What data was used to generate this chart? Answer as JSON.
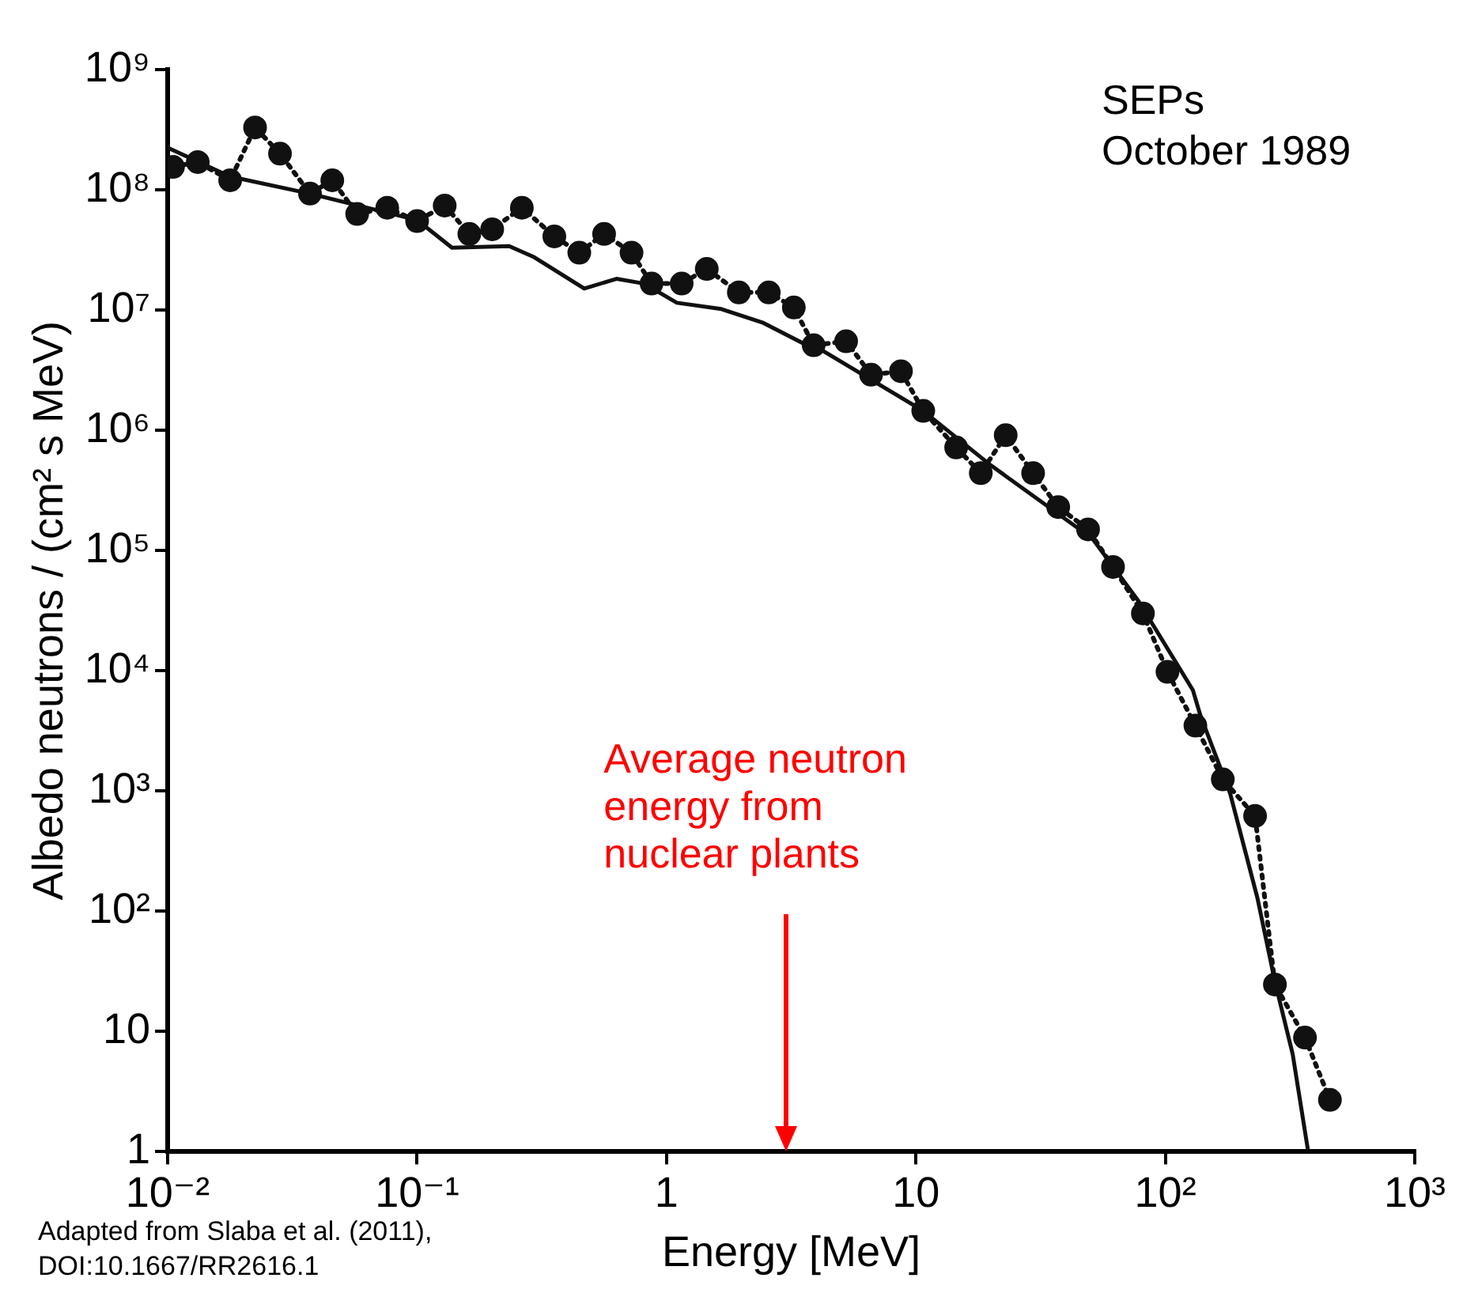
{
  "chart_data": {
    "type": "line",
    "xlabel": "Energy [MeV]",
    "ylabel": "Albedo neutrons / (cm² s MeV)",
    "log": "xy",
    "xlim": [
      0.01,
      1000
    ],
    "ylim": [
      1,
      1000000000
    ],
    "xticks": [
      {
        "value": 0.01,
        "label": "10⁻²"
      },
      {
        "value": 0.1,
        "label": "10⁻¹"
      },
      1,
      10,
      {
        "value": 100,
        "label": "10²"
      },
      {
        "value": 1000,
        "label": "10³"
      }
    ],
    "yticks": [
      1,
      10,
      {
        "value": 100,
        "label": "10²"
      },
      {
        "value": 1000,
        "label": "10³"
      },
      {
        "value": 10000,
        "label": "10⁴"
      },
      {
        "value": 100000,
        "label": "10⁵"
      },
      {
        "value": 1000000,
        "label": "10⁶"
      },
      {
        "value": 10000000,
        "label": "10⁷"
      },
      {
        "value": 100000000,
        "label": "10⁸"
      },
      {
        "value": 1000000000,
        "label": "10⁹"
      }
    ],
    "series": [
      {
        "color": "#111111",
        "marker": "none",
        "line_style": "solid",
        "x": [
          0.01,
          0.0178,
          0.0372,
          0.1,
          0.138,
          0.234,
          0.295,
          0.468,
          0.63,
          0.813,
          1.1,
          1.66,
          2.45,
          3.72,
          3.89,
          10.7,
          20,
          51,
          78,
          129,
          138,
          182,
          234,
          275,
          324,
          372
        ],
        "values": [
          224000000,
          129000000,
          93000000,
          56000000,
          33000000,
          34000000,
          27500000,
          15100000,
          18200000,
          16600000,
          11500000,
          10200000,
          7800000,
          5000000,
          5100000,
          1450000,
          510000,
          126000,
          38000,
          6900,
          4300,
          950,
          129,
          26,
          6.5,
          1.07
        ]
      },
      {
        "color": "#111111",
        "marker": "circle",
        "line_style": "dotted",
        "x": [
          0.0105,
          0.0132,
          0.0178,
          0.0224,
          0.0282,
          0.0372,
          0.0457,
          0.0575,
          0.0759,
          0.1,
          0.129,
          0.162,
          0.2,
          0.263,
          0.355,
          0.447,
          0.562,
          0.724,
          0.871,
          1.15,
          1.45,
          1.95,
          2.57,
          3.24,
          3.89,
          5.25,
          6.61,
          8.71,
          10.7,
          14.5,
          18.2,
          22.9,
          29.5,
          37.2,
          49,
          61.7,
          81.3,
          102,
          132,
          170,
          229,
          275,
          363,
          457
        ],
        "values": [
          155000000,
          170000000,
          120000000,
          330000000,
          200000000,
          93000000,
          120000000,
          63000000,
          71000000,
          55000000,
          74000000,
          43000000,
          47000000,
          71000000,
          41000000,
          30000000,
          43000000,
          30000000,
          16600000,
          16600000,
          22000000,
          14000000,
          14000000,
          10500000,
          5100000,
          5500000,
          2900000,
          3100000,
          1450000,
          720000,
          440000,
          910000,
          440000,
          230000,
          150000,
          73000,
          30000,
          9800,
          3500,
          1250,
          620,
          24.6,
          8.9,
          2.7
        ]
      }
    ],
    "ref_lines": [
      {
        "axis": "x",
        "value": 3,
        "label": "Average neutron\nenergy from\nnuclear plants",
        "color": "#ff0000"
      }
    ],
    "annotations": [
      "SEPs\nOctober 1989",
      "Adapted from Slaba et al. (2011),\nDOI:10.1667/RR2616.1"
    ]
  }
}
